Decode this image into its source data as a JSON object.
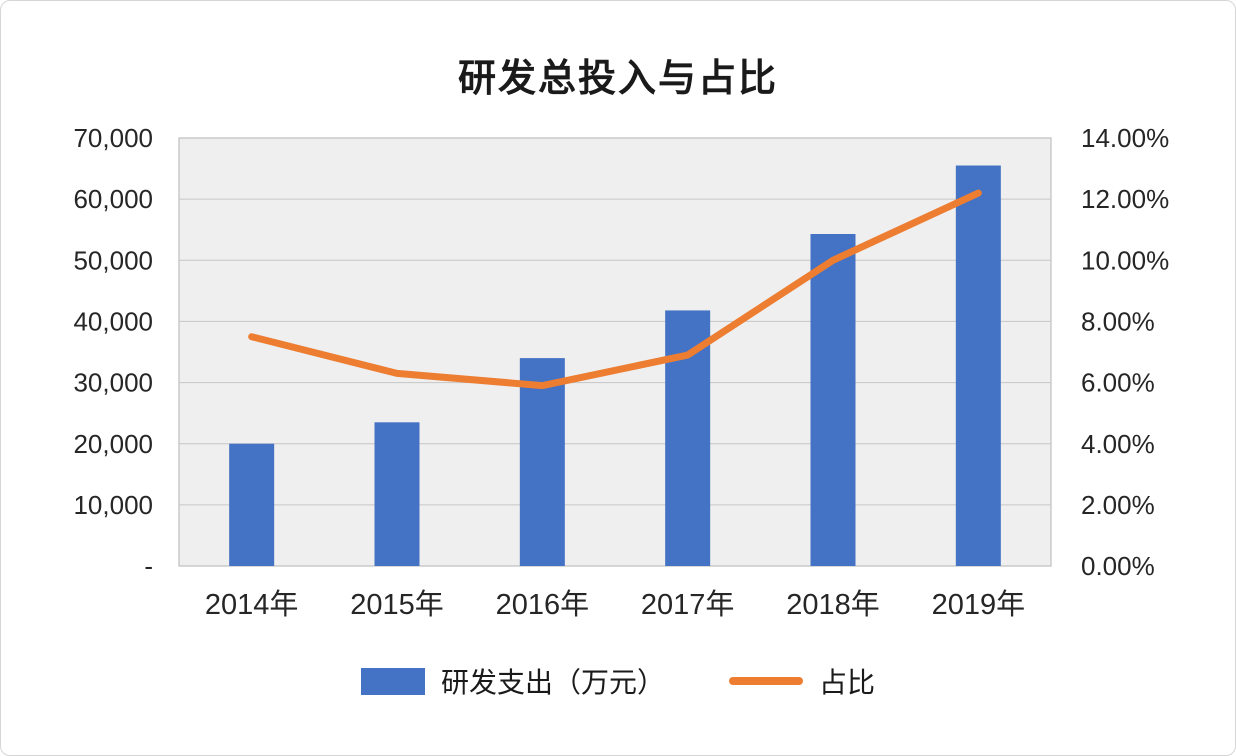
{
  "chart_data": {
    "type": "bar+line",
    "title": "研发总投入与占比",
    "categories": [
      "2014年",
      "2015年",
      "2016年",
      "2017年",
      "2018年",
      "2019年"
    ],
    "series": [
      {
        "name": "研发支出（万元）",
        "type": "bar",
        "axis": "left",
        "color": "#4472C4",
        "values": [
          20000,
          23500,
          34000,
          41800,
          54300,
          65500
        ]
      },
      {
        "name": "占比",
        "type": "line",
        "axis": "right",
        "color": "#ED7D31",
        "values": [
          7.5,
          6.3,
          5.9,
          6.9,
          10.0,
          12.2
        ]
      }
    ],
    "left_axis": {
      "min": 0,
      "max": 70000,
      "step": 10000,
      "tick_labels": [
        "-",
        "10,000",
        "20,000",
        "30,000",
        "40,000",
        "50,000",
        "60,000",
        "70,000"
      ]
    },
    "right_axis": {
      "min": 0,
      "max": 14,
      "step": 2,
      "tick_labels": [
        "0.00%",
        "2.00%",
        "4.00%",
        "6.00%",
        "8.00%",
        "10.00%",
        "12.00%",
        "14.00%"
      ]
    },
    "grid": true,
    "legend_position": "bottom",
    "colors": {
      "plot_bg": "#efefef",
      "grid_line": "#c6c6c6",
      "plot_border": "#bfbfbf",
      "axis_text": "#262626"
    }
  }
}
